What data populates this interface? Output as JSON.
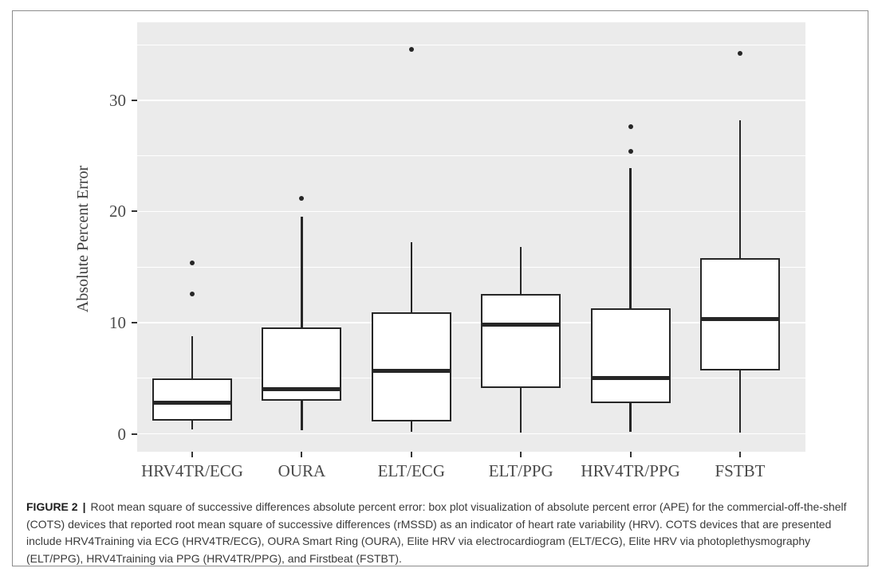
{
  "figure": {
    "caption": {
      "label": "FIGURE 2",
      "separator": "|",
      "text": "Root mean square of successive differences absolute percent error: box plot visualization of absolute percent error (APE) for the commercial-off-the-shelf (COTS) devices that reported root mean square of successive differences (rMSSD) as an indicator of heart rate variability (HRV). COTS devices that are presented include HRV4Training via ECG (HRV4TR/ECG), OURA Smart Ring (OURA), Elite HRV via electrocardiogram (ELT/ECG), Elite HRV via photoplethysmography (ELT/PPG), HRV4Training via PPG (HRV4TR/PPG), and Firstbeat (FSTBT)."
    }
  },
  "chart_data": {
    "type": "boxplot",
    "title": "",
    "xlabel": "",
    "ylabel": "Absolute Percent Error",
    "categories": [
      "HRV4TR/ECG",
      "OURA",
      "ELT/ECG",
      "ELT/PPG",
      "HRV4TR/PPG",
      "FSTBT"
    ],
    "yticks": [
      0,
      10,
      20,
      30
    ],
    "minor_ticks": [
      5,
      15,
      25,
      35
    ],
    "ylim": [
      -1.6,
      37
    ],
    "grid": "horizontal white major and minor gridlines on gray panel, no vertical data gridlines",
    "legend": "none",
    "boxes": [
      {
        "category": "HRV4TR/ECG",
        "whisker_low": 0.4,
        "q1": 1.2,
        "median": 2.8,
        "q3": 5.0,
        "whisker_high": 8.8,
        "outliers": [
          12.6,
          15.4
        ]
      },
      {
        "category": "OURA",
        "whisker_low": 0.3,
        "q1": 3.0,
        "median": 4.0,
        "q3": 9.6,
        "whisker_high": 19.5,
        "outliers": [
          21.2
        ]
      },
      {
        "category": "ELT/ECG",
        "whisker_low": 0.2,
        "q1": 1.1,
        "median": 5.7,
        "q3": 10.9,
        "whisker_high": 17.2,
        "outliers": [
          34.6
        ]
      },
      {
        "category": "ELT/PPG",
        "whisker_low": 0.1,
        "q1": 4.1,
        "median": 9.8,
        "q3": 12.6,
        "whisker_high": 16.8,
        "outliers": []
      },
      {
        "category": "HRV4TR/PPG",
        "whisker_low": 0.2,
        "q1": 2.8,
        "median": 5.0,
        "q3": 11.3,
        "whisker_high": 23.9,
        "outliers": [
          25.4,
          27.6
        ]
      },
      {
        "category": "FSTBT",
        "whisker_low": 0.1,
        "q1": 5.7,
        "median": 10.3,
        "q3": 15.8,
        "whisker_high": 28.2,
        "outliers": [
          34.2
        ]
      }
    ],
    "colors": {
      "panel_background": "#ebebeb",
      "gridline": "#ffffff",
      "box_stroke": "#262626",
      "box_fill": "#ffffff",
      "axis_text": "#4a4a4a",
      "caption_text": "#3a3a3a",
      "frame_border": "#8c8c8c",
      "page_background": "#ffffff"
    }
  }
}
